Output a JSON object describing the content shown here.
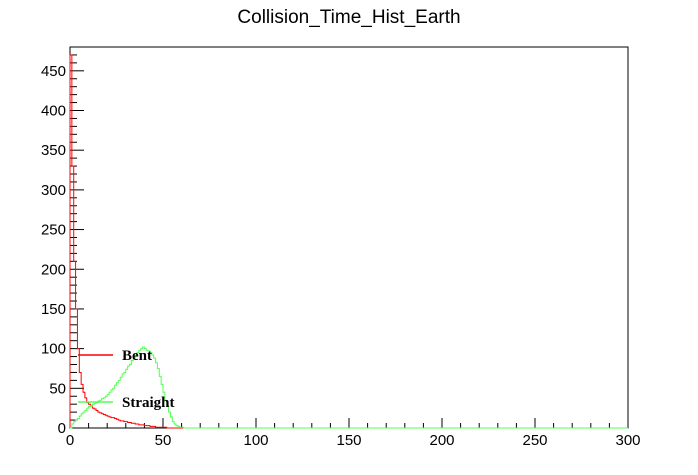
{
  "chart_data": {
    "type": "line",
    "title": "Collision_Time_Hist_Earth",
    "xlabel": "",
    "ylabel": "",
    "xlim": [
      0,
      300
    ],
    "ylim": [
      0,
      480
    ],
    "x_ticks": [
      0,
      50,
      100,
      150,
      200,
      250,
      300
    ],
    "y_ticks": [
      0,
      50,
      100,
      150,
      200,
      250,
      300,
      350,
      400,
      450
    ],
    "grid": false,
    "legend_position": "left",
    "bin_width": 1,
    "series": [
      {
        "name": "Bent",
        "color": "#ff0000",
        "points": [
          [
            0,
            470
          ],
          [
            1,
            330
          ],
          [
            2,
            210
          ],
          [
            3,
            150
          ],
          [
            4,
            100
          ],
          [
            5,
            70
          ],
          [
            6,
            55
          ],
          [
            7,
            45
          ],
          [
            8,
            38
          ],
          [
            9,
            32
          ],
          [
            10,
            30
          ],
          [
            11,
            28
          ],
          [
            12,
            25
          ],
          [
            13,
            24
          ],
          [
            14,
            22
          ],
          [
            15,
            20
          ],
          [
            16,
            19
          ],
          [
            17,
            18
          ],
          [
            18,
            17
          ],
          [
            19,
            16
          ],
          [
            20,
            15
          ],
          [
            21,
            14
          ],
          [
            22,
            13
          ],
          [
            23,
            13
          ],
          [
            24,
            12
          ],
          [
            25,
            11
          ],
          [
            26,
            10
          ],
          [
            27,
            9
          ],
          [
            28,
            9
          ],
          [
            29,
            8
          ],
          [
            30,
            8
          ],
          [
            31,
            7
          ],
          [
            32,
            7
          ],
          [
            33,
            6
          ],
          [
            34,
            6
          ],
          [
            35,
            5
          ],
          [
            36,
            5
          ],
          [
            37,
            4
          ],
          [
            38,
            4
          ],
          [
            39,
            4
          ],
          [
            40,
            3
          ],
          [
            41,
            3
          ],
          [
            42,
            3
          ],
          [
            43,
            2
          ],
          [
            44,
            2
          ],
          [
            45,
            2
          ],
          [
            46,
            1
          ],
          [
            47,
            1
          ],
          [
            48,
            1
          ],
          [
            49,
            1
          ],
          [
            50,
            1
          ],
          [
            51,
            1
          ],
          [
            52,
            0
          ],
          [
            53,
            0
          ],
          [
            54,
            0
          ],
          [
            55,
            0
          ],
          [
            60,
            0
          ],
          [
            70,
            0
          ],
          [
            80,
            0
          ],
          [
            100,
            0
          ],
          [
            150,
            0
          ],
          [
            200,
            0
          ],
          [
            250,
            0
          ],
          [
            300,
            0
          ]
        ]
      },
      {
        "name": "Straight",
        "color": "#55ff55",
        "points": [
          [
            0,
            0
          ],
          [
            1,
            5
          ],
          [
            2,
            8
          ],
          [
            3,
            10
          ],
          [
            4,
            12
          ],
          [
            5,
            15
          ],
          [
            6,
            18
          ],
          [
            7,
            20
          ],
          [
            8,
            22
          ],
          [
            9,
            25
          ],
          [
            10,
            27
          ],
          [
            11,
            28
          ],
          [
            12,
            30
          ],
          [
            13,
            31
          ],
          [
            14,
            32
          ],
          [
            15,
            34
          ],
          [
            16,
            35
          ],
          [
            17,
            37
          ],
          [
            18,
            38
          ],
          [
            19,
            40
          ],
          [
            20,
            42
          ],
          [
            21,
            45
          ],
          [
            22,
            48
          ],
          [
            23,
            50
          ],
          [
            24,
            54
          ],
          [
            25,
            57
          ],
          [
            26,
            60
          ],
          [
            27,
            64
          ],
          [
            28,
            68
          ],
          [
            29,
            70
          ],
          [
            30,
            74
          ],
          [
            31,
            78
          ],
          [
            32,
            80
          ],
          [
            33,
            85
          ],
          [
            34,
            88
          ],
          [
            35,
            92
          ],
          [
            36,
            95
          ],
          [
            37,
            98
          ],
          [
            38,
            100
          ],
          [
            39,
            102
          ],
          [
            40,
            100
          ],
          [
            41,
            98
          ],
          [
            42,
            97
          ],
          [
            43,
            95
          ],
          [
            44,
            92
          ],
          [
            45,
            88
          ],
          [
            46,
            82
          ],
          [
            47,
            75
          ],
          [
            48,
            65
          ],
          [
            49,
            55
          ],
          [
            50,
            45
          ],
          [
            51,
            35
          ],
          [
            52,
            28
          ],
          [
            53,
            20
          ],
          [
            54,
            14
          ],
          [
            55,
            8
          ],
          [
            56,
            5
          ],
          [
            57,
            3
          ],
          [
            58,
            2
          ],
          [
            59,
            1
          ],
          [
            60,
            1
          ],
          [
            61,
            0
          ],
          [
            62,
            0
          ],
          [
            70,
            0
          ],
          [
            100,
            0
          ],
          [
            150,
            0
          ],
          [
            200,
            0
          ],
          [
            250,
            0
          ],
          [
            300,
            0
          ]
        ]
      }
    ]
  }
}
